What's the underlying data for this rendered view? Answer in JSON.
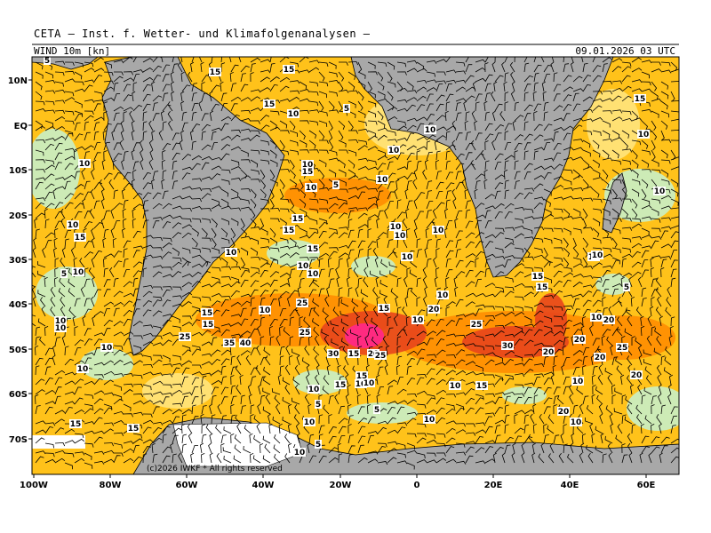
{
  "header": {
    "title": "CETA — Inst. f. Wetter- und Klimafolgenanalysen —",
    "variable": "WIND 10m [kn]",
    "datetime": "09.01.2026 03 UTC"
  },
  "axes": {
    "lat_labels": [
      "10N",
      "EQ",
      "10S",
      "20S",
      "30S",
      "40S",
      "50S",
      "60S",
      "70S"
    ],
    "lon_labels": [
      "100W",
      "80W",
      "60W",
      "40W",
      "20W",
      "0",
      "20E",
      "40E",
      "60E"
    ]
  },
  "copyright": "(c)2026 IWKF * All rights reserved",
  "wind_labels": [
    "5",
    "15",
    "15",
    "5",
    "15",
    "10",
    "10",
    "10",
    "10",
    "10",
    "10",
    "15",
    "10",
    "5",
    "10",
    "10",
    "15",
    "10",
    "10",
    "10",
    "15",
    "15",
    "10",
    "15",
    "10",
    "15",
    "10",
    "10",
    "5",
    "10",
    "10",
    "10",
    "15",
    "10",
    "5",
    "10",
    "15",
    "15",
    "10",
    "25",
    "15",
    "10",
    "20",
    "25",
    "10",
    "20",
    "15",
    "25",
    "25",
    "20",
    "40",
    "35",
    "30",
    "15",
    "20",
    "25",
    "30",
    "20",
    "25",
    "20",
    "15",
    "10",
    "15",
    "10",
    "15",
    "20",
    "10",
    "5",
    "10",
    "10",
    "5",
    "10",
    "20",
    "10",
    "15",
    "10",
    "5",
    "15",
    "10",
    "10",
    "10",
    "10",
    "10"
  ],
  "colors": {
    "land": "#a8a8a8",
    "ice": "#ffffff",
    "calm": "#c8f0c8",
    "low": "#ffd84a",
    "mid": "#ffb400",
    "high": "#ff7800",
    "storm": "#e83a1c",
    "extreme": "#ff1a7a"
  }
}
